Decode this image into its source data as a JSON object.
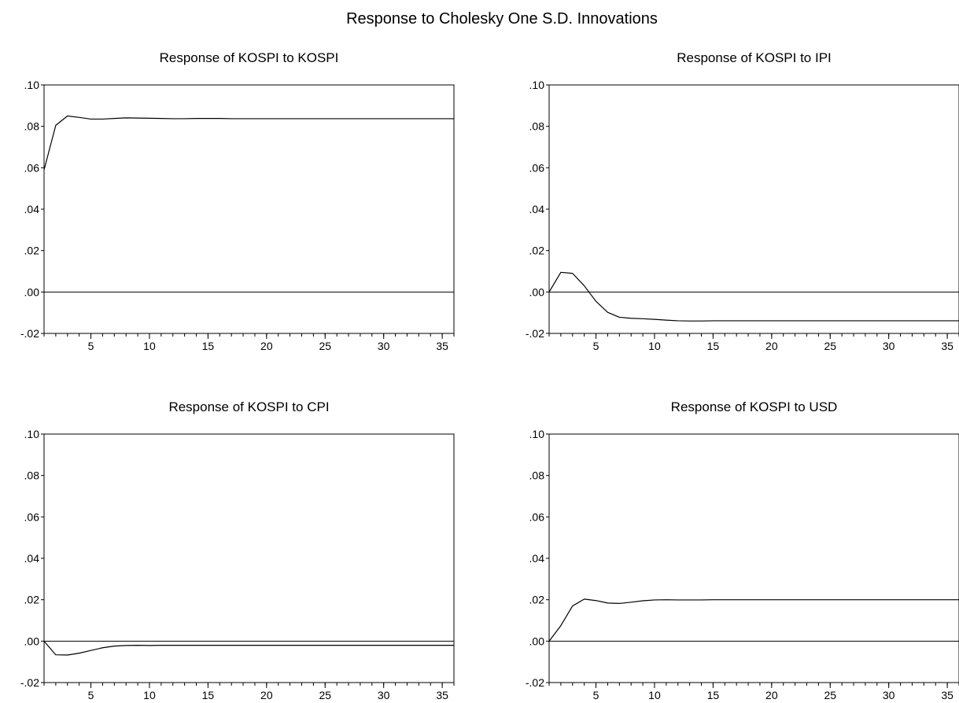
{
  "figure": {
    "title": "Response to Cholesky One S.D. Innovations"
  },
  "chart_data": [
    {
      "type": "line",
      "title": "Response of KOSPI to KOSPI",
      "xlabel": "",
      "ylabel": "",
      "xlim": [
        1,
        36
      ],
      "ylim": [
        -0.02,
        0.1
      ],
      "xticks": [
        5,
        10,
        15,
        20,
        25,
        30,
        35
      ],
      "xtick_labels": [
        "5",
        "10",
        "15",
        "20",
        "25",
        "30",
        "35"
      ],
      "yticks": [
        -0.02,
        0.0,
        0.02,
        0.04,
        0.06,
        0.08,
        0.1
      ],
      "ytick_labels": [
        "-.02",
        ".00",
        ".02",
        ".04",
        ".06",
        ".08",
        ".10"
      ],
      "zero_line": true,
      "grid": false,
      "legend": "none",
      "x": [
        1,
        2,
        3,
        4,
        5,
        6,
        7,
        8,
        9,
        10,
        11,
        12,
        13,
        14,
        15,
        16,
        17,
        18,
        19,
        20,
        21,
        22,
        23,
        24,
        25,
        26,
        27,
        28,
        29,
        30,
        31,
        32,
        33,
        34,
        35,
        36
      ],
      "series": [
        {
          "values": [
            0.059,
            0.0805,
            0.085,
            0.0843,
            0.0835,
            0.0835,
            0.0838,
            0.0841,
            0.084,
            0.0839,
            0.0838,
            0.0837,
            0.0837,
            0.0838,
            0.0838,
            0.0838,
            0.0837,
            0.0837,
            0.0837,
            0.0837,
            0.0837,
            0.0837,
            0.0837,
            0.0837,
            0.0837,
            0.0837,
            0.0837,
            0.0837,
            0.0837,
            0.0837,
            0.0837,
            0.0837,
            0.0837,
            0.0837,
            0.0837,
            0.0837
          ]
        }
      ]
    },
    {
      "type": "line",
      "title": "Response of KOSPI to IPI",
      "xlabel": "",
      "ylabel": "",
      "xlim": [
        1,
        36
      ],
      "ylim": [
        -0.02,
        0.1
      ],
      "xticks": [
        5,
        10,
        15,
        20,
        25,
        30,
        35
      ],
      "xtick_labels": [
        "5",
        "10",
        "15",
        "20",
        "25",
        "30",
        "35"
      ],
      "yticks": [
        -0.02,
        0.0,
        0.02,
        0.04,
        0.06,
        0.08,
        0.1
      ],
      "ytick_labels": [
        "-.02",
        ".00",
        ".02",
        ".04",
        ".06",
        ".08",
        ".10"
      ],
      "zero_line": true,
      "grid": false,
      "legend": "none",
      "x": [
        1,
        2,
        3,
        4,
        5,
        6,
        7,
        8,
        9,
        10,
        11,
        12,
        13,
        14,
        15,
        16,
        17,
        18,
        19,
        20,
        21,
        22,
        23,
        24,
        25,
        26,
        27,
        28,
        29,
        30,
        31,
        32,
        33,
        34,
        35,
        36
      ],
      "series": [
        {
          "values": [
            0.0,
            0.0095,
            0.009,
            0.003,
            -0.0045,
            -0.0098,
            -0.0122,
            -0.0127,
            -0.0129,
            -0.0132,
            -0.0136,
            -0.0139,
            -0.014,
            -0.014,
            -0.0139,
            -0.0139,
            -0.0139,
            -0.0139,
            -0.0139,
            -0.0139,
            -0.0139,
            -0.0139,
            -0.0139,
            -0.0139,
            -0.0139,
            -0.0139,
            -0.0139,
            -0.0139,
            -0.0139,
            -0.0139,
            -0.0139,
            -0.0139,
            -0.0139,
            -0.0139,
            -0.0139,
            -0.0139
          ]
        }
      ]
    },
    {
      "type": "line",
      "title": "Response of KOSPI to CPI",
      "xlabel": "",
      "ylabel": "",
      "xlim": [
        1,
        36
      ],
      "ylim": [
        -0.02,
        0.1
      ],
      "xticks": [
        5,
        10,
        15,
        20,
        25,
        30,
        35
      ],
      "xtick_labels": [
        "5",
        "10",
        "15",
        "20",
        "25",
        "30",
        "35"
      ],
      "yticks": [
        -0.02,
        0.0,
        0.02,
        0.04,
        0.06,
        0.08,
        0.1
      ],
      "ytick_labels": [
        "-.02",
        ".00",
        ".02",
        ".04",
        ".06",
        ".08",
        ".10"
      ],
      "zero_line": true,
      "grid": false,
      "legend": "none",
      "x": [
        1,
        2,
        3,
        4,
        5,
        6,
        7,
        8,
        9,
        10,
        11,
        12,
        13,
        14,
        15,
        16,
        17,
        18,
        19,
        20,
        21,
        22,
        23,
        24,
        25,
        26,
        27,
        28,
        29,
        30,
        31,
        32,
        33,
        34,
        35,
        36
      ],
      "series": [
        {
          "values": [
            0.0,
            -0.0066,
            -0.0067,
            -0.0058,
            -0.0045,
            -0.0032,
            -0.0024,
            -0.0021,
            -0.002,
            -0.0021,
            -0.002,
            -0.002,
            -0.002,
            -0.002,
            -0.002,
            -0.002,
            -0.002,
            -0.002,
            -0.002,
            -0.002,
            -0.002,
            -0.002,
            -0.002,
            -0.002,
            -0.002,
            -0.002,
            -0.002,
            -0.002,
            -0.002,
            -0.002,
            -0.002,
            -0.002,
            -0.002,
            -0.002,
            -0.002,
            -0.002
          ]
        }
      ]
    },
    {
      "type": "line",
      "title": "Response of KOSPI to USD",
      "xlabel": "",
      "ylabel": "",
      "xlim": [
        1,
        36
      ],
      "ylim": [
        -0.02,
        0.1
      ],
      "xticks": [
        5,
        10,
        15,
        20,
        25,
        30,
        35
      ],
      "xtick_labels": [
        "5",
        "10",
        "15",
        "20",
        "25",
        "30",
        "35"
      ],
      "yticks": [
        -0.02,
        0.0,
        0.02,
        0.04,
        0.06,
        0.08,
        0.1
      ],
      "ytick_labels": [
        "-.02",
        ".00",
        ".02",
        ".04",
        ".06",
        ".08",
        ".10"
      ],
      "zero_line": true,
      "grid": false,
      "legend": "none",
      "x": [
        1,
        2,
        3,
        4,
        5,
        6,
        7,
        8,
        9,
        10,
        11,
        12,
        13,
        14,
        15,
        16,
        17,
        18,
        19,
        20,
        21,
        22,
        23,
        24,
        25,
        26,
        27,
        28,
        29,
        30,
        31,
        32,
        33,
        34,
        35,
        36
      ],
      "series": [
        {
          "values": [
            0.0,
            0.0075,
            0.017,
            0.0203,
            0.0196,
            0.0184,
            0.0182,
            0.0188,
            0.0195,
            0.0199,
            0.02,
            0.0199,
            0.0199,
            0.0199,
            0.02,
            0.02,
            0.02,
            0.02,
            0.02,
            0.02,
            0.02,
            0.02,
            0.02,
            0.02,
            0.02,
            0.02,
            0.02,
            0.02,
            0.02,
            0.02,
            0.02,
            0.02,
            0.02,
            0.02,
            0.02,
            0.02
          ]
        }
      ]
    }
  ]
}
